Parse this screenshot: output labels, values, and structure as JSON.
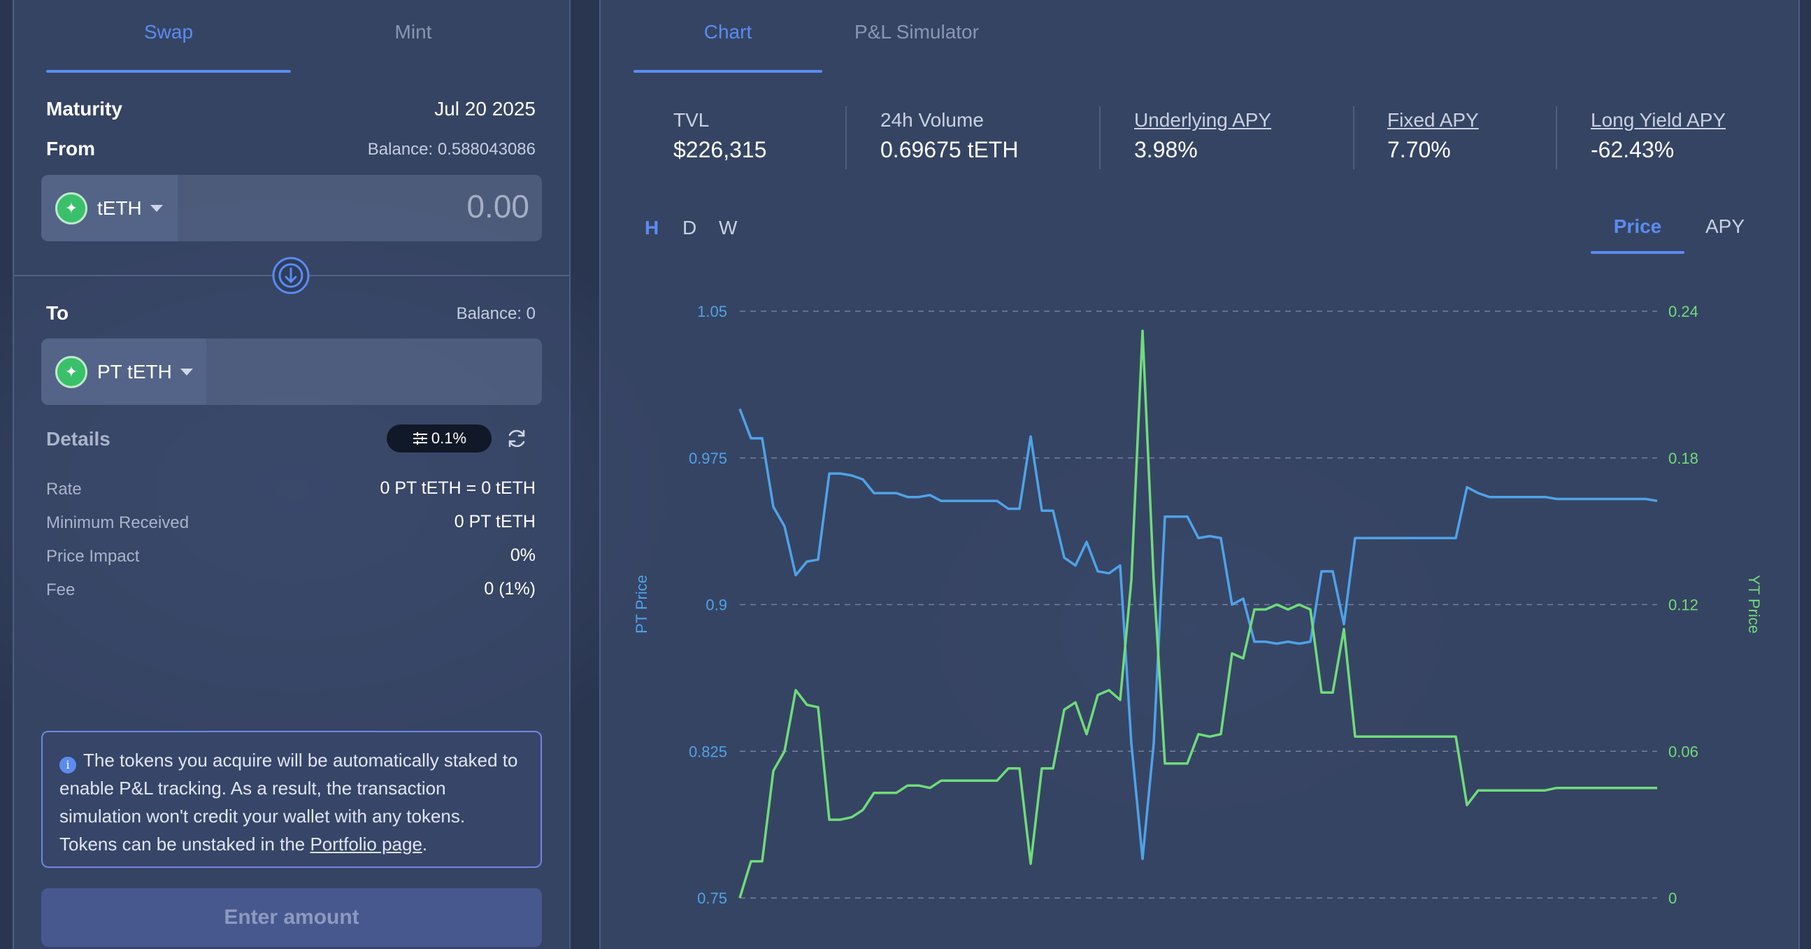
{
  "left": {
    "tabs": [
      {
        "label": "Swap",
        "active": true
      },
      {
        "label": "Mint",
        "active": false
      }
    ],
    "maturity_label": "Maturity",
    "maturity_value": "Jul 20 2025",
    "from_label": "From",
    "from_balance": "Balance: 0.588043086",
    "from_token": "tETH",
    "from_amount_placeholder": "0.00",
    "to_label": "To",
    "to_balance": "Balance: 0",
    "to_token": "PT tETH",
    "details_label": "Details",
    "slippage": "0.1%",
    "details": [
      {
        "label": "Rate",
        "value": "0 PT tETH = 0 tETH"
      },
      {
        "label": "Minimum Received",
        "value": "0 PT tETH"
      },
      {
        "label": "Price Impact",
        "value": "0%"
      },
      {
        "label": "Fee",
        "value": "0 (1%)"
      }
    ],
    "notice_text": "The tokens you acquire will be automatically staked to enable P&L tracking. As a result, the transaction simulation won't credit your wallet with any tokens. Tokens can be unstaked in the ",
    "notice_link": "Portfolio page",
    "notice_end": ".",
    "submit_label": "Enter amount"
  },
  "right": {
    "tabs": [
      {
        "label": "Chart",
        "active": true
      },
      {
        "label": "P&L Simulator",
        "active": false
      }
    ],
    "stats": [
      {
        "label": "TVL",
        "value": "$226,315",
        "underlined": false
      },
      {
        "label": "24h Volume",
        "value": "0.69675 tETH",
        "underlined": false
      },
      {
        "label": "Underlying APY",
        "value": "3.98%",
        "underlined": true
      },
      {
        "label": "Fixed APY",
        "value": "7.70%",
        "underlined": true
      },
      {
        "label": "Long Yield APY",
        "value": "-62.43%",
        "underlined": true
      }
    ],
    "ranges": [
      {
        "label": "H",
        "active": true
      },
      {
        "label": "D",
        "active": false
      },
      {
        "label": "W",
        "active": false
      }
    ],
    "modes": [
      {
        "label": "Price",
        "active": true
      },
      {
        "label": "APY",
        "active": false
      }
    ]
  },
  "colors": {
    "pt": "#4ea3e8",
    "yt": "#6fdc7a",
    "accent": "#5a8cf0"
  },
  "chart_data": {
    "type": "line",
    "y_left_label": "PT Price",
    "y_right_label": "YT Price",
    "y_left_ticks": [
      "1.05",
      "0.975",
      "0.9",
      "0.825",
      "0.75"
    ],
    "y_right_ticks": [
      "0.24",
      "0.18",
      "0.12",
      "0.06",
      "0"
    ],
    "ylim_left": [
      0.75,
      1.05
    ],
    "ylim_right": [
      0,
      0.24
    ],
    "grid": true,
    "series": [
      {
        "name": "PT Price",
        "axis": "left",
        "values": [
          1.0,
          0.985,
          0.985,
          0.95,
          0.94,
          0.915,
          0.922,
          0.923,
          0.967,
          0.967,
          0.966,
          0.964,
          0.957,
          0.957,
          0.957,
          0.955,
          0.955,
          0.956,
          0.953,
          0.953,
          0.953,
          0.953,
          0.953,
          0.953,
          0.949,
          0.949,
          0.986,
          0.948,
          0.948,
          0.924,
          0.92,
          0.932,
          0.917,
          0.916,
          0.92,
          0.829,
          0.77,
          0.829,
          0.945,
          0.945,
          0.945,
          0.934,
          0.935,
          0.934,
          0.9,
          0.903,
          0.881,
          0.881,
          0.88,
          0.881,
          0.88,
          0.881,
          0.917,
          0.917,
          0.89,
          0.934,
          0.934,
          0.934,
          0.934,
          0.934,
          0.934,
          0.934,
          0.934,
          0.934,
          0.934,
          0.96,
          0.957,
          0.955,
          0.955,
          0.955,
          0.955,
          0.955,
          0.955,
          0.954,
          0.954,
          0.954,
          0.954,
          0.954,
          0.954,
          0.954,
          0.954,
          0.954,
          0.953
        ]
      },
      {
        "name": "YT Price",
        "axis": "right",
        "values": [
          0.0,
          0.015,
          0.015,
          0.052,
          0.06,
          0.085,
          0.079,
          0.078,
          0.032,
          0.032,
          0.033,
          0.036,
          0.043,
          0.043,
          0.043,
          0.046,
          0.046,
          0.045,
          0.048,
          0.048,
          0.048,
          0.048,
          0.048,
          0.048,
          0.053,
          0.053,
          0.014,
          0.053,
          0.053,
          0.077,
          0.08,
          0.067,
          0.083,
          0.085,
          0.081,
          0.13,
          0.232,
          0.13,
          0.055,
          0.055,
          0.055,
          0.067,
          0.066,
          0.067,
          0.1,
          0.098,
          0.118,
          0.118,
          0.12,
          0.118,
          0.12,
          0.118,
          0.084,
          0.084,
          0.11,
          0.066,
          0.066,
          0.066,
          0.066,
          0.066,
          0.066,
          0.066,
          0.066,
          0.066,
          0.066,
          0.038,
          0.044,
          0.044,
          0.044,
          0.044,
          0.044,
          0.044,
          0.044,
          0.045,
          0.045,
          0.045,
          0.045,
          0.045,
          0.045,
          0.045,
          0.045,
          0.045,
          0.045
        ]
      }
    ]
  }
}
